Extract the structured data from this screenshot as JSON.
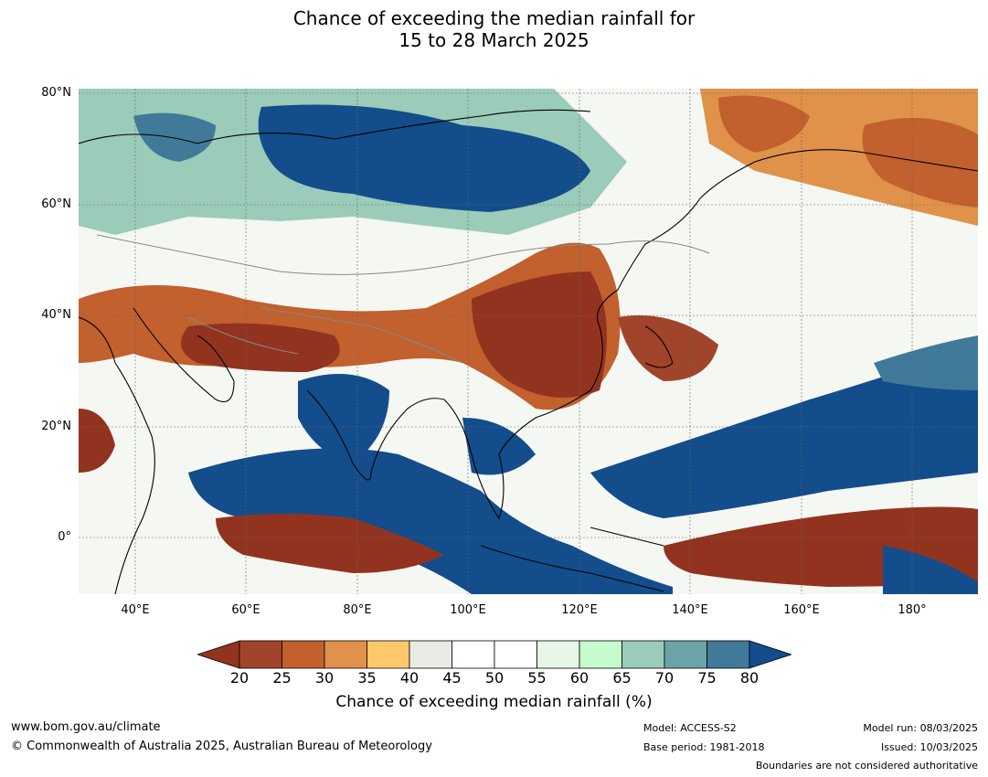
{
  "title": {
    "line1": "Chance of exceeding the median rainfall for",
    "line2": "15 to 28 March 2025"
  },
  "map": {
    "lat_labels": [
      "80°N",
      "60°N",
      "40°N",
      "20°N",
      "0°"
    ],
    "lon_labels": [
      "40°E",
      "60°E",
      "80°E",
      "100°E",
      "120°E",
      "140°E",
      "160°E",
      "180°"
    ]
  },
  "colorbar": {
    "ticks": [
      "20",
      "25",
      "30",
      "35",
      "40",
      "45",
      "50",
      "55",
      "60",
      "65",
      "70",
      "75",
      "80"
    ],
    "colors": [
      "#a0452b",
      "#c2602e",
      "#e0924a",
      "#fec96a",
      "#eceae4",
      "#ffffff",
      "#ffffff",
      "#e8f6e8",
      "#c6fbcb",
      "#9accb9",
      "#6ba3a8",
      "#417999"
    ],
    "low_extend_color": "#923320",
    "high_extend_color": "#134d8b",
    "label": "Chance of exceeding median rainfall (%)"
  },
  "footer": {
    "website": "www.bom.gov.au/climate",
    "copyright": "© Commonwealth of Australia 2025, Australian Bureau of Meteorology",
    "model": "Model: ACCESS-S2",
    "base_period": "Base period: 1981-2018",
    "model_run": "Model run: 08/03/2025",
    "issued": "Issued: 10/03/2025",
    "disclaimer": "Boundaries are not considered authoritative"
  }
}
